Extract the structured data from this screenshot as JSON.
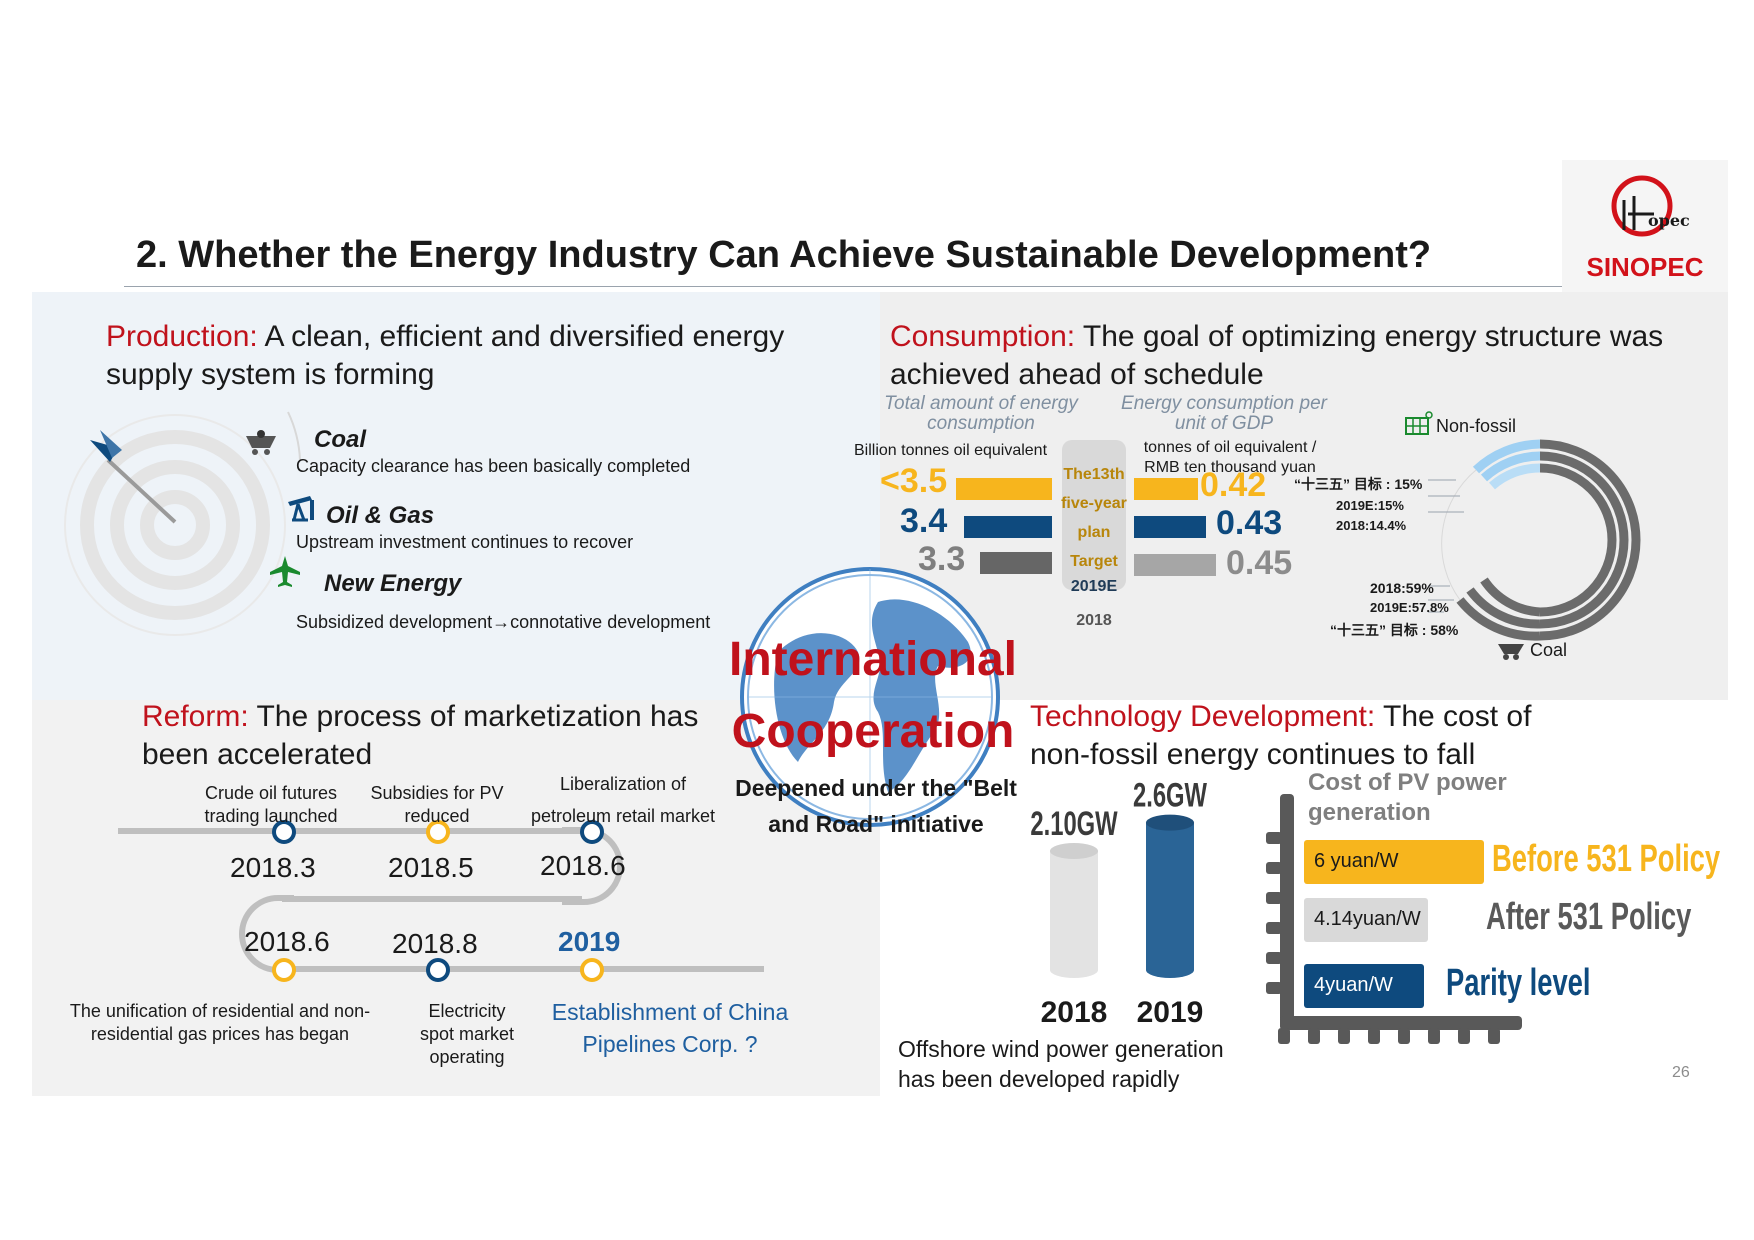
{
  "title": "2.   Whether the Energy Industry Can Achieve Sustainable Development?",
  "logo": {
    "name": "SINOPEC",
    "color": "#d2121a"
  },
  "colors": {
    "accent_red": "#c0121c",
    "navy": "#0e4a7e",
    "gold": "#f7b51d",
    "grey": "#7f7f7f",
    "light_blue": "#9fd0f3"
  },
  "production": {
    "heading_kw": "Production:",
    "heading_rest": " A clean, efficient and diversified energy supply system is forming",
    "items": [
      {
        "title": "Coal",
        "desc": "Capacity clearance has been basically completed",
        "icon": "mine-cart-icon"
      },
      {
        "title": "Oil & Gas",
        "desc": "Upstream investment continues to recover",
        "icon": "oil-pump-icon"
      },
      {
        "title": "New Energy",
        "desc": "Subsidized development→connotative development",
        "icon": "airplane-icon"
      }
    ]
  },
  "consumption": {
    "heading_kw": "Consumption:",
    "heading_rest": " The goal of optimizing energy structure was achieved  ahead of schedule",
    "total_label": "Total amount of energy consumption",
    "total_unit": "Billion tonnes oil equivalent",
    "intensity_label": "Energy consumption per unit of GDP",
    "intensity_unit": "tonnes of oil equivalent / RMB ten thousand yuan",
    "plan_lines": [
      "The13th",
      "five-year",
      "plan",
      "Target"
    ],
    "row_labels": [
      "2019E",
      "2018"
    ],
    "total_values": [
      "<3.5",
      "3.4",
      "3.3"
    ],
    "intensity_values": [
      "0.42",
      "0.43",
      "0.45"
    ],
    "nonfossil_label": "Non-fossil",
    "coal_label": "Coal",
    "nonfossil_notes": [
      "“十三五” 目标 : 15%",
      "2019E:15%",
      "2018:14.4%"
    ],
    "coal_notes": [
      "2018:59%",
      "2019E:57.8%",
      "“十三五” 目标 : 58%"
    ]
  },
  "cooperation": {
    "title_line1": "International",
    "title_line2": "Cooperation",
    "sub_line1": "Deepened under the \"Belt",
    "sub_line2": "and Road\" initiative"
  },
  "reform": {
    "heading_kw": "Reform:",
    "heading_rest": " The process of marketization has been accelerated",
    "top": [
      {
        "date": "2018.3",
        "cap": "Crude oil futures trading launched"
      },
      {
        "date": "2018.5",
        "cap": "Subsidies for PV reduced"
      },
      {
        "date": "2018.6",
        "cap": "Liberalization of petroleum retail market"
      }
    ],
    "bottom": [
      {
        "date": "2018.6",
        "cap": "The unification of residential and non-residential gas prices has began"
      },
      {
        "date": "2018.8",
        "cap": "Electricity spot market operating"
      },
      {
        "date": "2019",
        "cap": "Establishment of China Pipelines Corp. ?"
      }
    ]
  },
  "technology": {
    "heading_kw": "Technology Development:",
    "heading_rest": " The cost of non-fossil energy continues to fall",
    "wind_caption": "Offshore wind power generation has been developed rapidly",
    "pv_title": "Cost of PV power generation",
    "cost_bars": [
      {
        "label": "6 yuan/W",
        "note": "Before 531 Policy",
        "value": 6
      },
      {
        "label": "4.14yuan/W",
        "note": "After 531 Policy",
        "value": 4.14
      },
      {
        "label": "4yuan/W",
        "note": "Parity level",
        "value": 4
      }
    ]
  },
  "chart_data": [
    {
      "type": "bar",
      "title": "",
      "categories": [
        "2018",
        "2019"
      ],
      "series": [
        {
          "values": [
            2.1,
            2.6
          ]
        }
      ],
      "data_labels": [
        "2.10GW",
        "2.6GW"
      ],
      "xlabel": "",
      "ylabel": ""
    },
    {
      "type": "bar",
      "title": "Cost of PV power generation",
      "categories": [
        "Before 531 Policy",
        "After 531 Policy",
        "Parity level"
      ],
      "values": [
        6,
        4.14,
        4
      ],
      "data_labels": [
        "6 yuan/W",
        "4.14yuan/W",
        "4yuan/W"
      ]
    }
  ],
  "page_number": "26"
}
